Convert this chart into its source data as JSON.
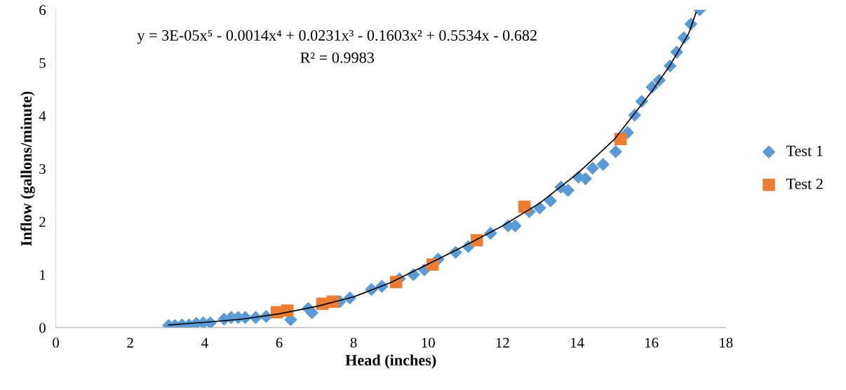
{
  "chart_data": {
    "type": "scatter",
    "xlabel": "Head (inches)",
    "ylabel": "Inflow (gallons/minute)",
    "xlim": [
      0,
      18
    ],
    "ylim": [
      0,
      6
    ],
    "xticks": [
      0,
      2,
      4,
      6,
      8,
      10,
      12,
      14,
      16,
      18
    ],
    "yticks": [
      0,
      1,
      2,
      3,
      4,
      5,
      6
    ],
    "grid": false,
    "legend": "right",
    "annotations": [
      "y = 3E-05x⁵ - 0.0014x⁴ + 0.0231x³ - 0.1603x² + 0.5534x - 0.682",
      "R² = 0.9983"
    ],
    "series": [
      {
        "name": "Test 1",
        "color": "#5b9bd5",
        "marker": "diamond",
        "x": [
          3.03,
          3.2,
          3.39,
          3.58,
          3.77,
          3.96,
          4.15,
          4.52,
          4.71,
          4.9,
          5.09,
          5.37,
          5.65,
          6.31,
          6.78,
          6.88,
          7.63,
          7.9,
          8.48,
          8.76,
          9.23,
          9.61,
          9.9,
          10.27,
          10.74,
          11.08,
          11.68,
          12.15,
          12.34,
          12.72,
          13.0,
          13.29,
          13.57,
          13.76,
          14.04,
          14.23,
          14.42,
          14.7,
          15.04,
          15.36,
          15.55,
          15.74,
          16.02,
          16.21,
          16.5,
          16.68,
          16.87,
          17.06,
          17.3
        ],
        "values": [
          0.04,
          0.04,
          0.05,
          0.05,
          0.08,
          0.09,
          0.09,
          0.16,
          0.19,
          0.19,
          0.19,
          0.19,
          0.21,
          0.15,
          0.36,
          0.28,
          0.49,
          0.56,
          0.72,
          0.78,
          0.92,
          1.0,
          1.09,
          1.29,
          1.42,
          1.53,
          1.78,
          1.92,
          1.92,
          2.19,
          2.26,
          2.39,
          2.65,
          2.59,
          2.84,
          2.81,
          3.01,
          3.08,
          3.32,
          3.68,
          4.01,
          4.27,
          4.54,
          4.67,
          4.94,
          5.2,
          5.47,
          5.73,
          6.0
        ]
      },
      {
        "name": "Test 2",
        "color": "#ed7d31",
        "marker": "square",
        "x": [
          5.94,
          6.22,
          7.16,
          7.44,
          9.14,
          10.12,
          11.31,
          12.59,
          15.17
        ],
        "values": [
          0.29,
          0.32,
          0.45,
          0.49,
          0.86,
          1.19,
          1.65,
          2.28,
          3.56
        ]
      },
      {
        "type": "line",
        "color": "#000000",
        "marker": "none",
        "x": [
          3.03,
          4,
          5,
          6,
          7,
          8,
          9,
          10,
          11,
          12,
          13,
          14,
          15,
          16,
          16.5,
          17,
          17.2
        ],
        "values": [
          0.05,
          0.1,
          0.16,
          0.26,
          0.4,
          0.58,
          0.85,
          1.2,
          1.55,
          1.92,
          2.35,
          2.9,
          3.55,
          4.45,
          4.95,
          5.55,
          5.95
        ]
      }
    ]
  }
}
